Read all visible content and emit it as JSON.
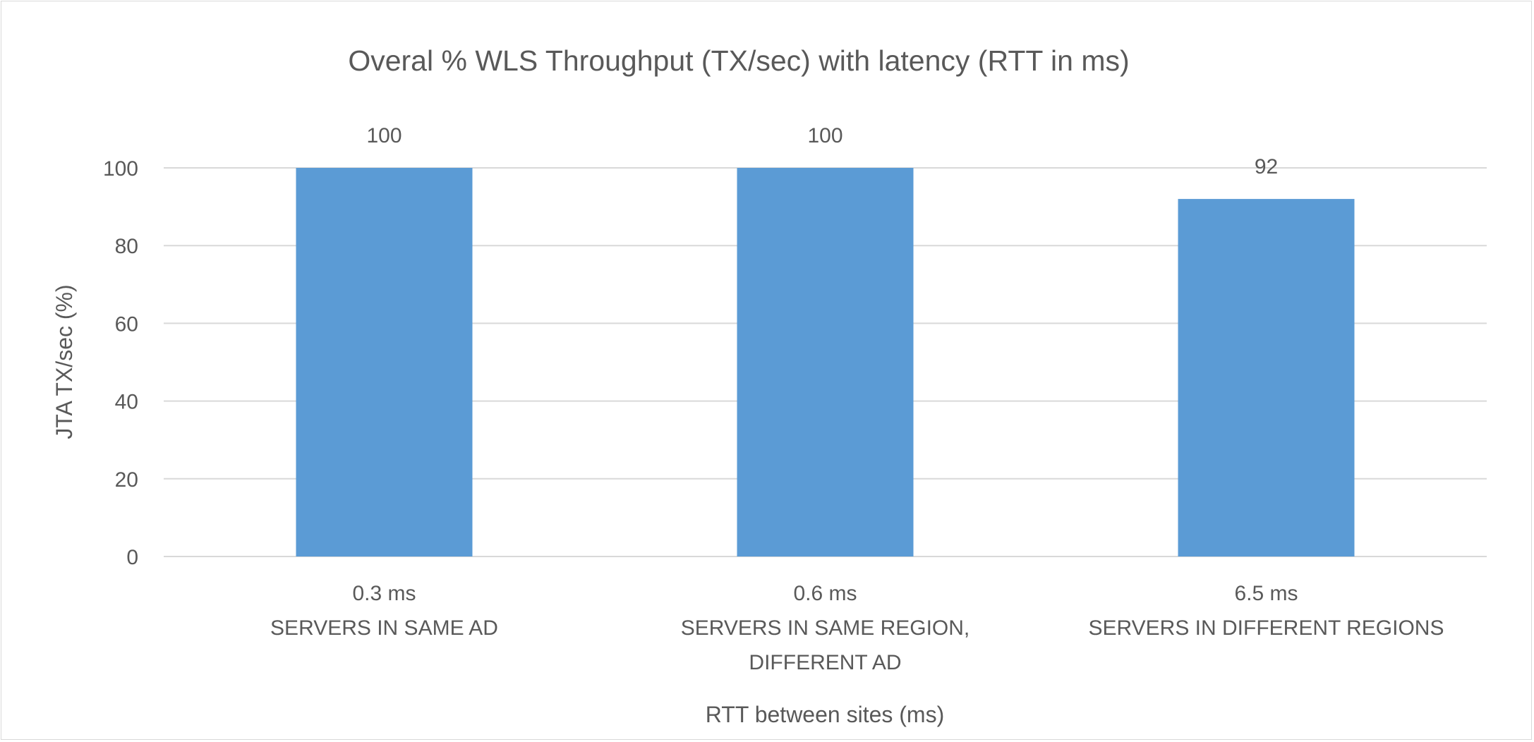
{
  "chart_data": {
    "type": "bar",
    "title": "Overal % WLS Throughput (TX/sec) with latency (RTT in ms)",
    "xlabel": "RTT between sites (ms)",
    "ylabel": "JTA TX/sec (%)",
    "categories": [
      [
        "0.3 ms",
        "SERVERS IN SAME AD"
      ],
      [
        "0.6 ms",
        "SERVERS IN SAME REGION,",
        "DIFFERENT AD"
      ],
      [
        "6.5 ms",
        "SERVERS IN DIFFERENT REGIONS"
      ]
    ],
    "values": [
      100,
      100,
      92
    ],
    "data_labels": [
      "100",
      "100",
      "92"
    ],
    "ylim": [
      0,
      100
    ],
    "yticks": [
      0,
      20,
      40,
      60,
      80,
      100
    ],
    "grid": true,
    "legend": "none",
    "bar_color": "#5b9bd5",
    "grid_color": "#d9d9d9"
  }
}
